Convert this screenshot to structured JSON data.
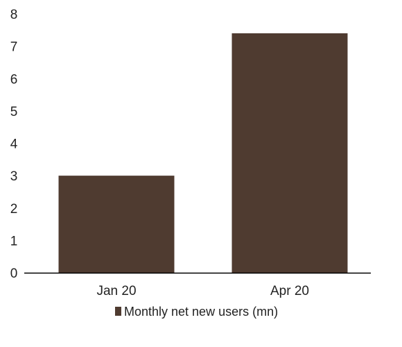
{
  "chart_data": {
    "type": "bar",
    "categories": [
      "Jan 20",
      "Apr 20"
    ],
    "series": [
      {
        "name": "Monthly net new users (mn)",
        "values": [
          3.0,
          7.4
        ],
        "color": "#4f3b30"
      }
    ],
    "ylim": [
      0,
      8
    ],
    "yticks": [
      0,
      1,
      2,
      3,
      4,
      5,
      6,
      7,
      8
    ],
    "grid": false,
    "legend": "bottom-center",
    "title": "",
    "xlabel": "",
    "ylabel": ""
  }
}
